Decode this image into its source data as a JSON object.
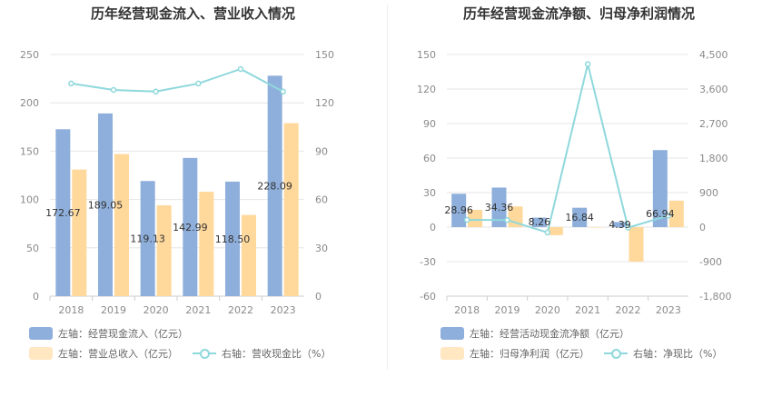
{
  "chart_data": [
    {
      "type": "bar",
      "title": "历年经营现金流入、营业收入情况",
      "categories": [
        "2018",
        "2019",
        "2020",
        "2021",
        "2022",
        "2023"
      ],
      "left_axis": {
        "min": 0,
        "max": 250,
        "ticks": [
          "0",
          "50",
          "100",
          "150",
          "200",
          "250"
        ]
      },
      "right_axis": {
        "min": 0,
        "max": 150,
        "ticks": [
          "0",
          "30",
          "60",
          "90",
          "120",
          "150"
        ]
      },
      "series": [
        {
          "name": "左轴：经营现金流入（亿元）",
          "kind": "bar",
          "axis": "left",
          "color": "#8eafdb",
          "values": [
            172.67,
            189.05,
            119.13,
            142.99,
            118.5,
            228.09
          ],
          "labels": [
            "172.67",
            "189.05",
            "119.13",
            "142.99",
            "118.50",
            "228.09"
          ]
        },
        {
          "name": "左轴：营业总收入（亿元）",
          "kind": "bar",
          "axis": "left",
          "color": "#ffd89b",
          "values": [
            131,
            147,
            94,
            108,
            84,
            179
          ]
        },
        {
          "name": "右轴：营收现金比（%）",
          "kind": "line",
          "axis": "right",
          "color": "#8fd8dc",
          "values": [
            132,
            128,
            127,
            132,
            141,
            127
          ]
        }
      ]
    },
    {
      "type": "bar",
      "title": "历年经营现金流净额、归母净利润情况",
      "categories": [
        "2018",
        "2019",
        "2020",
        "2021",
        "2022",
        "2023"
      ],
      "left_axis": {
        "min": -60,
        "max": 150,
        "ticks": [
          "-60",
          "-30",
          "0",
          "30",
          "60",
          "90",
          "120",
          "150"
        ]
      },
      "right_axis": {
        "min": -1800,
        "max": 4500,
        "ticks": [
          "-1,800",
          "-900",
          "0",
          "900",
          "1,800",
          "2,700",
          "3,600",
          "4,500"
        ]
      },
      "series": [
        {
          "name": "左轴：经营活动现金流净额（亿元）",
          "kind": "bar",
          "axis": "left",
          "color": "#8eafdb",
          "values": [
            28.96,
            34.36,
            8.26,
            16.84,
            4.39,
            66.94
          ],
          "labels": [
            "28.96",
            "34.36",
            "8.26",
            "16.84",
            "4.39",
            "66.94"
          ]
        },
        {
          "name": "左轴：归母净利润（亿元）",
          "kind": "bar",
          "axis": "left",
          "color": "#ffd89b",
          "values": [
            15,
            18,
            -7,
            0,
            -30,
            23
          ]
        },
        {
          "name": "右轴：净现比（%）",
          "kind": "line",
          "axis": "right",
          "color": "#8fd8dc",
          "values": [
            190,
            185,
            -140,
            4250,
            -15,
            300
          ]
        }
      ]
    }
  ]
}
